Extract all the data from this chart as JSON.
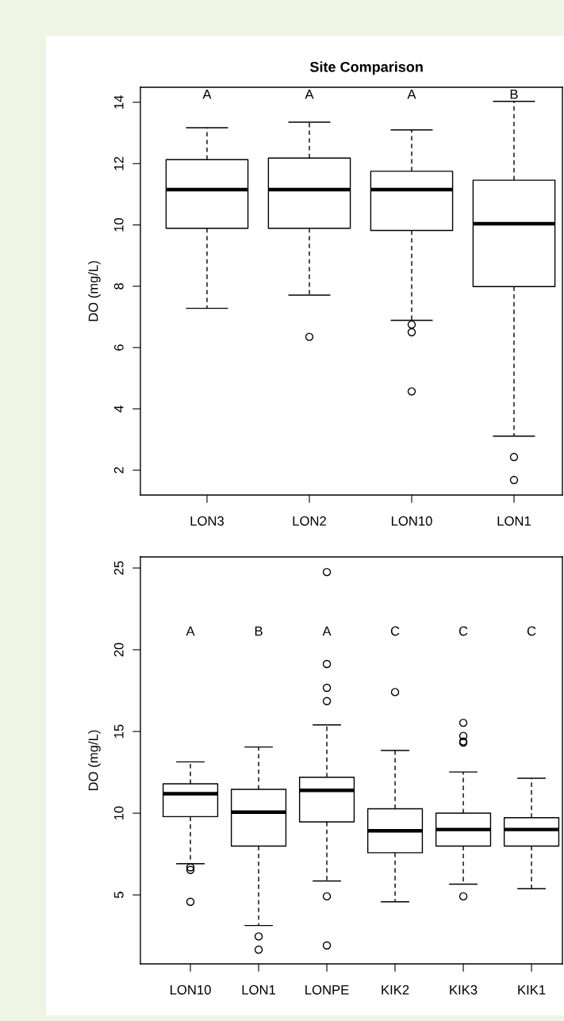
{
  "chart_data": [
    {
      "type": "box",
      "title": "Site Comparison",
      "ylabel": "DO (mg/L)",
      "categories": [
        "LON3",
        "LON2",
        "LON10",
        "LON1"
      ],
      "ylim": [
        1.19,
        14.49
      ],
      "yticks": [
        2,
        4,
        6,
        8,
        10,
        12,
        14
      ],
      "grid": false,
      "boxes": [
        {
          "low": 7.28,
          "q1": 9.89,
          "median": 11.15,
          "q3": 12.13,
          "high": 13.17
        },
        {
          "low": 7.71,
          "q1": 9.89,
          "median": 11.15,
          "q3": 12.18,
          "high": 13.35,
          "outliers": [
            6.35
          ]
        },
        {
          "low": 6.89,
          "q1": 9.82,
          "median": 11.15,
          "q3": 11.75,
          "high": 13.1,
          "outliers": [
            6.75,
            6.5,
            4.57
          ]
        },
        {
          "low": 3.11,
          "q1": 7.99,
          "median": 10.04,
          "q3": 11.46,
          "high": 14.03,
          "outliers": [
            2.43,
            1.68
          ]
        }
      ],
      "annotations": [
        "A",
        "A",
        "A",
        "B"
      ]
    },
    {
      "type": "box",
      "ylabel": "DO (mg/L)",
      "categories": [
        "LON10",
        "LON1",
        "LONPE",
        "KIK2",
        "KIK3",
        "KIK1"
      ],
      "ylim": [
        0.78,
        25.68
      ],
      "yticks": [
        5,
        10,
        15,
        20,
        25
      ],
      "grid": false,
      "boxes": [
        {
          "low": 6.91,
          "q1": 9.79,
          "median": 11.19,
          "q3": 11.8,
          "high": 13.14,
          "outliers": [
            6.69,
            6.53,
            4.58
          ]
        },
        {
          "low": 3.13,
          "q1": 7.99,
          "median": 10.06,
          "q3": 11.46,
          "high": 14.05,
          "outliers": [
            2.46,
            1.65
          ]
        },
        {
          "low": 5.85,
          "q1": 9.47,
          "median": 11.4,
          "q3": 12.2,
          "high": 15.4,
          "outliers": [
            24.75,
            19.13,
            17.67,
            16.86,
            4.91,
            1.91
          ]
        },
        {
          "low": 4.58,
          "q1": 7.58,
          "median": 8.92,
          "q3": 10.27,
          "high": 13.84,
          "outliers": [
            17.41
          ]
        },
        {
          "low": 5.66,
          "q1": 7.99,
          "median": 9.0,
          "q3": 10.0,
          "high": 12.52,
          "outliers": [
            15.53,
            14.73,
            14.39,
            14.32,
            4.91
          ]
        },
        {
          "low": 5.38,
          "q1": 7.99,
          "median": 9.0,
          "q3": 9.72,
          "high": 12.14
        }
      ],
      "annotations": [
        "A",
        "B",
        "A",
        "C",
        "C",
        "C"
      ]
    }
  ]
}
